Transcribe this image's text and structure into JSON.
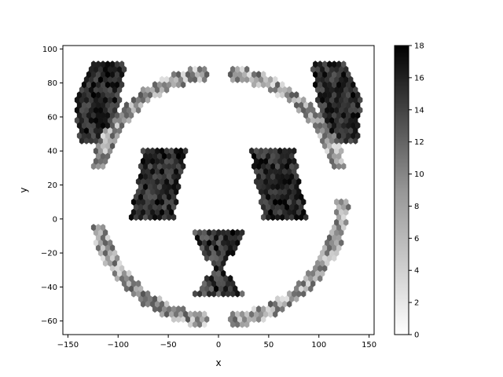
{
  "chart_data": {
    "type": "heatmap",
    "subtype": "hexbin",
    "title": "",
    "xlabel": "x",
    "ylabel": "y",
    "xlim": [
      -155,
      155
    ],
    "ylim": [
      -68,
      102
    ],
    "xticks": [
      -150,
      -100,
      -50,
      0,
      50,
      100,
      150
    ],
    "xtick_labels": [
      "−150",
      "−100",
      "−50",
      "0",
      "50",
      "100",
      "150"
    ],
    "yticks": [
      -60,
      -40,
      -20,
      0,
      20,
      40,
      60,
      80,
      100
    ],
    "ytick_labels": [
      "−60",
      "−40",
      "−20",
      "0",
      "20",
      "40",
      "60",
      "80",
      "100"
    ],
    "colormap": "Greys",
    "color_range": [
      0,
      18
    ],
    "colorbar_ticks": [
      0,
      2,
      4,
      6,
      8,
      10,
      12,
      14,
      16,
      18
    ],
    "colorbar_tick_labels": [
      "0",
      "2",
      "4",
      "6",
      "8",
      "10",
      "12",
      "14",
      "16",
      "18"
    ],
    "grid": false,
    "regions": [
      {
        "shape": "ellipse",
        "cx": 0,
        "cy": 13,
        "rx": 124,
        "ry": 73,
        "band": 4,
        "count_range": [
          2,
          12
        ],
        "gaps": [
          [
            -5,
            8
          ],
          [
            82,
            98
          ],
          [
            172,
            188
          ],
          [
            262,
            278
          ]
        ]
      },
      {
        "shape": "polygon",
        "points": [
          [
            -140,
            45
          ],
          [
            -118,
            45
          ],
          [
            -98,
            68
          ],
          [
            -92,
            93
          ],
          [
            -125,
            93
          ],
          [
            -142,
            70
          ]
        ],
        "count_range": [
          12,
          18
        ]
      },
      {
        "shape": "polygon",
        "points": [
          [
            140,
            45
          ],
          [
            118,
            45
          ],
          [
            98,
            68
          ],
          [
            92,
            93
          ],
          [
            125,
            93
          ],
          [
            142,
            70
          ]
        ],
        "count_range": [
          12,
          18
        ]
      },
      {
        "shape": "polygon",
        "points": [
          [
            -75,
            41
          ],
          [
            -32,
            41
          ],
          [
            -44,
            0
          ],
          [
            -88,
            0
          ]
        ],
        "count_range": [
          12,
          18
        ]
      },
      {
        "shape": "polygon",
        "points": [
          [
            32,
            41
          ],
          [
            75,
            41
          ],
          [
            88,
            0
          ],
          [
            44,
            0
          ]
        ],
        "count_range": [
          12,
          18
        ]
      },
      {
        "shape": "bowtie",
        "points": [
          [
            -28,
            -6
          ],
          [
            28,
            -6
          ],
          [
            5,
            -30
          ],
          [
            28,
            -46
          ],
          [
            -28,
            -46
          ],
          [
            -5,
            -30
          ]
        ],
        "count_range": [
          10,
          18
        ]
      }
    ]
  }
}
